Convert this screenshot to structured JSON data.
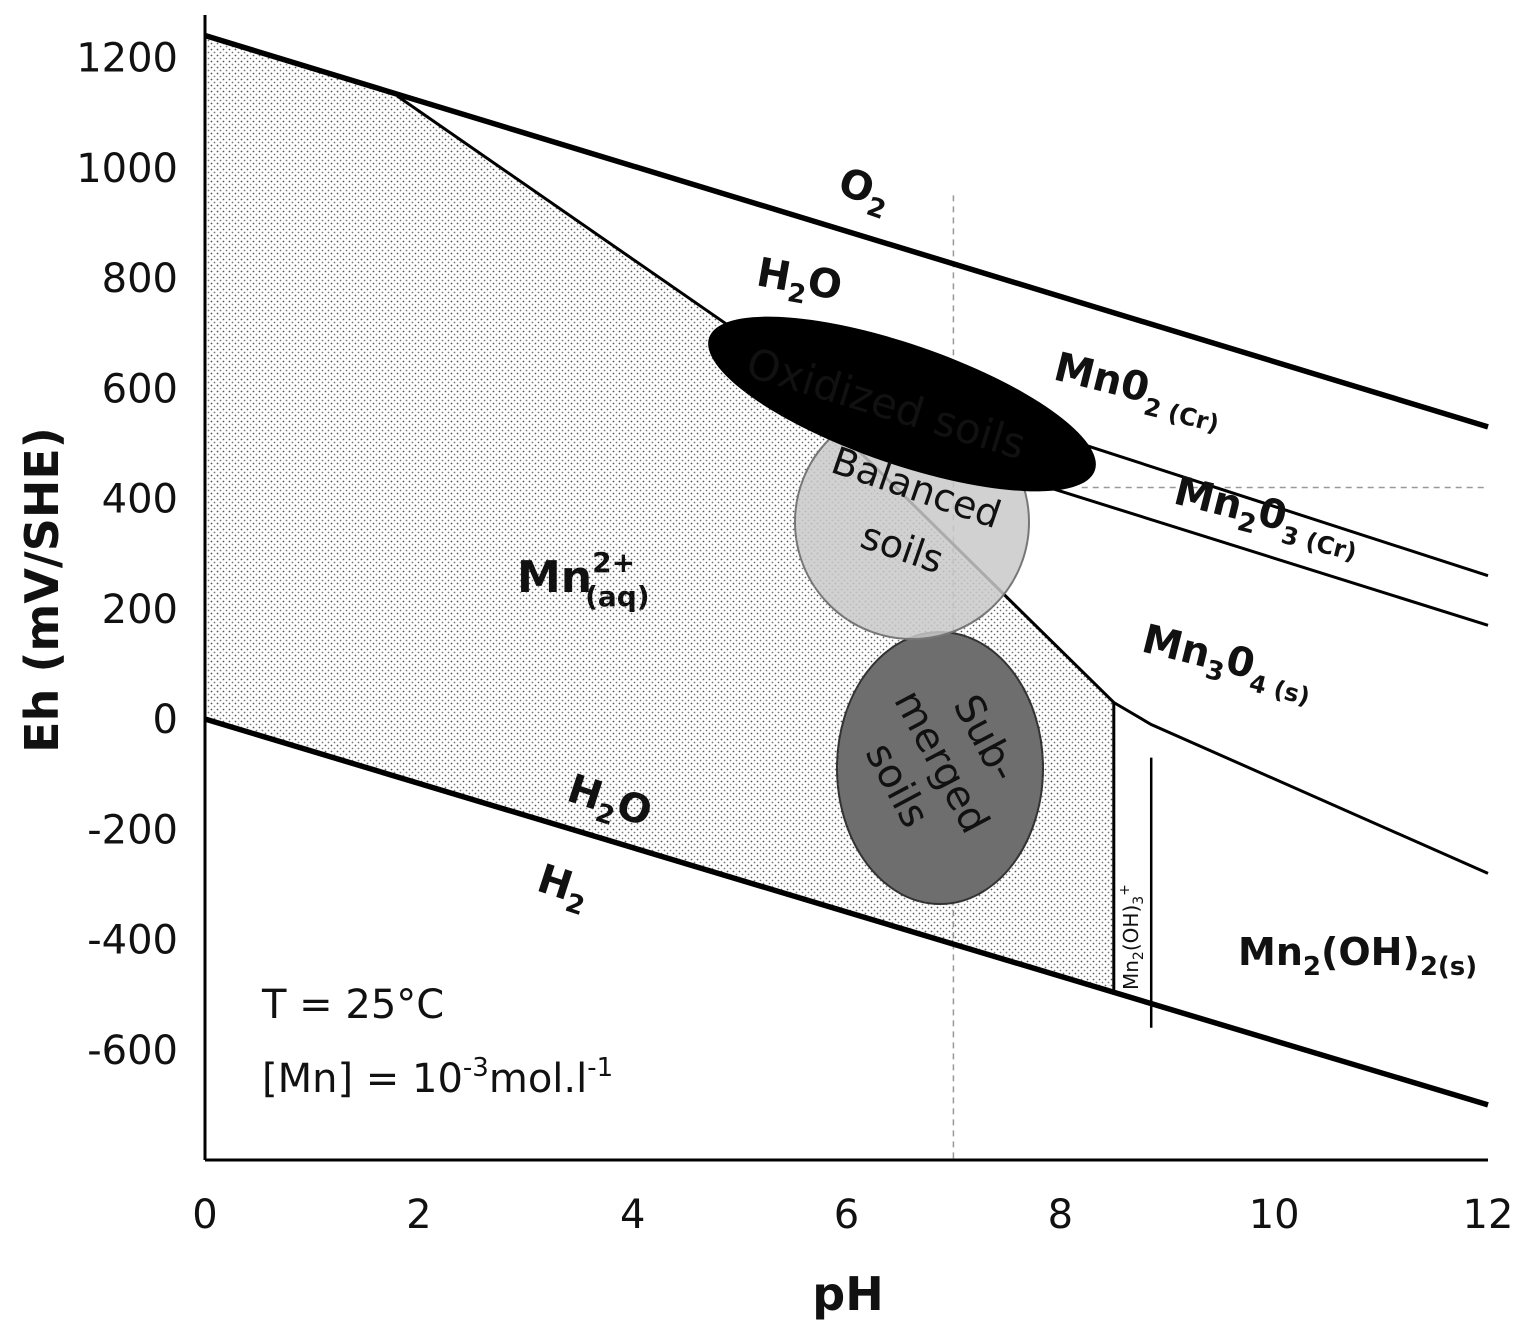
{
  "chart_data": {
    "type": "diagram",
    "xlabel": "pH",
    "ylabel": "Eh (mV/SHE)",
    "xlim": [
      0,
      12
    ],
    "ylim": [
      -800,
      1250
    ],
    "x_ticks": [
      0,
      2,
      4,
      6,
      8,
      10,
      12
    ],
    "y_ticks": [
      -600,
      -400,
      -200,
      0,
      200,
      400,
      600,
      800,
      1000,
      1200
    ],
    "reference_lines": {
      "pH": 7,
      "Eh": 420
    },
    "water_stability_lines": {
      "upper": [
        [
          0,
          1240
        ],
        [
          12,
          530
        ]
      ],
      "lower": [
        [
          0,
          0
        ],
        [
          12,
          -700
        ]
      ]
    },
    "boundaries": [
      {
        "name": "Mn2+ / MnO2",
        "points": [
          [
            1.8,
            1130
          ],
          [
            5.0,
            700
          ]
        ]
      },
      {
        "name": "Mn2+ / Mn2O3",
        "points": [
          [
            5.0,
            700
          ],
          [
            7.4,
            240
          ]
        ]
      },
      {
        "name": "Mn2+ / Mn3O4",
        "points": [
          [
            7.4,
            240
          ],
          [
            8.5,
            30
          ]
        ]
      },
      {
        "name": "Mn2+ / Mn2(OH)3+",
        "points": [
          [
            8.5,
            30
          ],
          [
            8.5,
            -500
          ]
        ]
      },
      {
        "name": "Mn2(OH)3+ / Mn2(OH)2",
        "points": [
          [
            8.85,
            -70
          ],
          [
            8.85,
            -560
          ]
        ]
      },
      {
        "name": "MnO2 / Mn2O3",
        "points": [
          [
            5.0,
            700
          ],
          [
            12,
            260
          ]
        ]
      },
      {
        "name": "Mn2O3 / Mn3O4",
        "points": [
          [
            7.4,
            450
          ],
          [
            12,
            170
          ]
        ]
      },
      {
        "name": "Mn3O4 / Mn2(OH)2",
        "points": [
          [
            8.5,
            30
          ],
          [
            8.85,
            -10
          ],
          [
            12,
            -280
          ]
        ]
      }
    ],
    "zones": [
      {
        "name": "Oxidized soils",
        "pH": 5.9,
        "Eh": 560,
        "fill": "#000000"
      },
      {
        "name": "Balanced soils",
        "pH": 6.5,
        "Eh": 350,
        "fill": "#c8c8c8"
      },
      {
        "name": "Sub-merged soils",
        "pH": 6.9,
        "Eh": -50,
        "fill": "#707070"
      }
    ],
    "annotations": {
      "o2": {
        "base": "O",
        "sub": "2"
      },
      "h2o_upper": {
        "pre": "H",
        "sub": "2",
        "post": "O"
      },
      "h2o_lower": {
        "pre": "H",
        "sub": "2",
        "post": "O"
      },
      "h2": {
        "base": "H",
        "sub": "2"
      },
      "mn2aq": {
        "base": "Mn",
        "sup": "2+",
        "sub": "(aq)"
      },
      "mno2": {
        "base": "Mn0",
        "sub": "2 (Cr)"
      },
      "mn2o3": {
        "a": "Mn",
        "s1": "2",
        "b": "0",
        "s2": "3 (Cr)"
      },
      "mn3o4": {
        "a": "Mn",
        "s1": "3",
        "b": "0",
        "s2": "4 (s)"
      },
      "mn2oh2": {
        "a": "Mn",
        "s1": "2",
        "b": "(OH)",
        "s2": "2(s)"
      },
      "mn2oh3": {
        "a": "Mn",
        "s1": "2",
        "b": "(OH)",
        "s2": "3",
        "sup": "+"
      },
      "oxidized": "Oxidized soils",
      "balanced": [
        "Balanced",
        "soils"
      ],
      "submerged": [
        "Sub-",
        "merged",
        "soils"
      ],
      "temperature": "T = 25°C",
      "concentration": {
        "pre": "[Mn] = 10",
        "exp1": "-3",
        "mid": "mol.l",
        "exp2": "-1"
      }
    }
  }
}
